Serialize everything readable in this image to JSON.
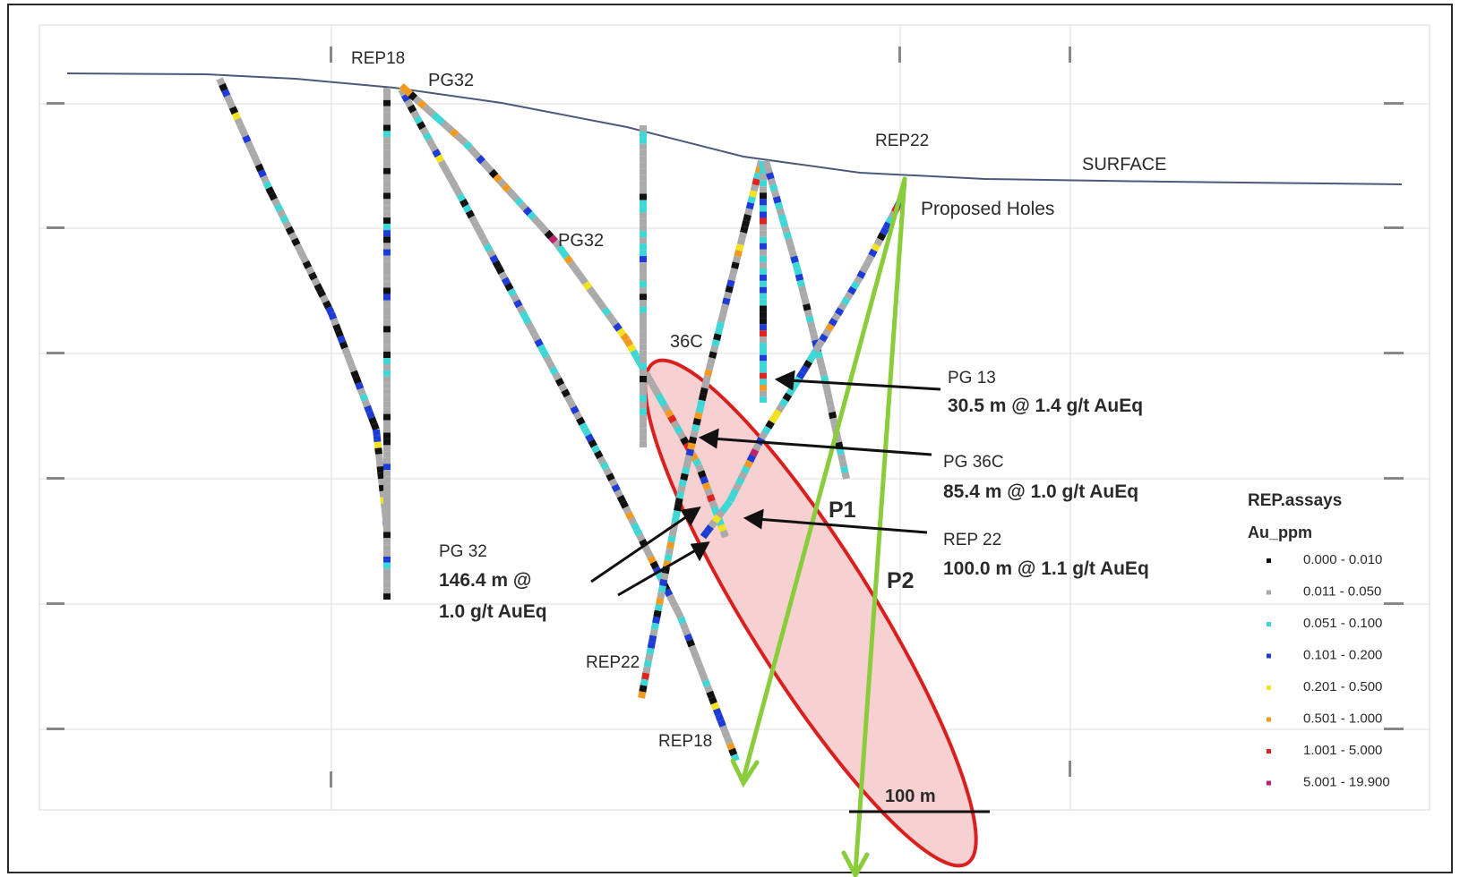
{
  "labels": {
    "surface": "SURFACE",
    "proposed_holes": "Proposed Holes",
    "rep18_top": "REP18",
    "pg32_top": "PG32",
    "rep22_top": "REP22",
    "pg32_mid": "PG32",
    "hole_36c": "36C",
    "rep22_bottom": "REP22",
    "rep18_bottom": "REP18",
    "p1": "P1",
    "p2": "P2",
    "scale": "100 m"
  },
  "callouts": {
    "pg13_name": "PG 13",
    "pg13_value": "30.5 m @ 1.4 g/t AuEq",
    "pg36c_name": "PG 36C",
    "pg36c_value": "85.4 m @ 1.0 g/t AuEq",
    "rep22_name": "REP 22",
    "rep22_value": "100.0 m @ 1.1 g/t AuEq",
    "pg32_name": "PG 32",
    "pg32_value_1": "146.4 m @",
    "pg32_value_2": "1.0 g/t AuEq"
  },
  "legend": {
    "title": "REP.assays",
    "subtitle": "Au_ppm",
    "items": [
      {
        "range": "0.000 - 0.010",
        "color": "#111111"
      },
      {
        "range": "0.011 - 0.050",
        "color": "#aaaaaa"
      },
      {
        "range": "0.051 - 0.100",
        "color": "#3fd6d6"
      },
      {
        "range": "0.101 - 0.200",
        "color": "#1f3bd6"
      },
      {
        "range": "0.201 - 0.500",
        "color": "#f2e21f"
      },
      {
        "range": "0.501 - 1.000",
        "color": "#f29a1f"
      },
      {
        "range": "1.001 - 5.000",
        "color": "#e0231f"
      },
      {
        "range": "5.001 - 19.900",
        "color": "#c0206e"
      }
    ]
  },
  "colors": {
    "target_fill": "#f7d1d1",
    "target_stroke": "#d9201f",
    "proposed": "#8acd3c",
    "surface": "#4a5a78",
    "grid": "#d9d9d9"
  }
}
